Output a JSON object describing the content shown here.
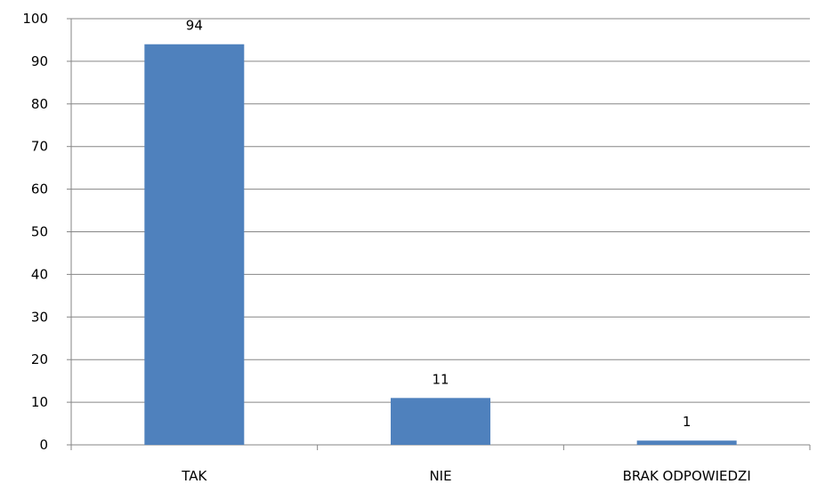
{
  "chart_data": {
    "type": "bar",
    "categories": [
      "TAK",
      "NIE",
      "BRAK ODPOWIEDZI"
    ],
    "values": [
      94,
      11,
      1
    ],
    "data_labels": [
      "94",
      "11",
      "1"
    ],
    "y_ticks": [
      0,
      10,
      20,
      30,
      40,
      50,
      60,
      70,
      80,
      90,
      100
    ],
    "title": "",
    "xlabel": "",
    "ylabel": "",
    "ylim": [
      0,
      100
    ],
    "grid": true,
    "legend": "none",
    "bar_color": "#4f81bd",
    "grid_color": "#868686"
  }
}
